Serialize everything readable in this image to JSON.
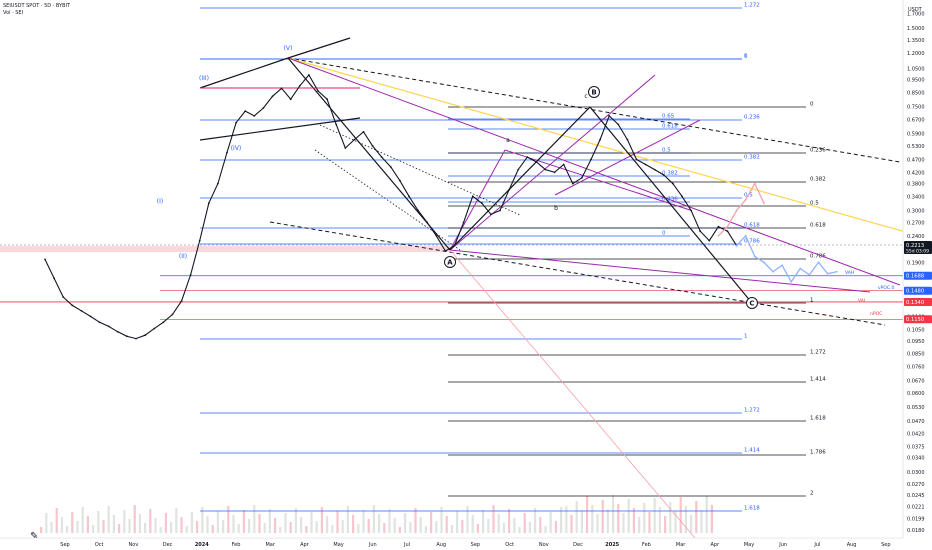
{
  "header": {
    "symbol_line": "SEIUSDT SPOT · 5D · BYBIT",
    "sub_line": "Vol · SEI"
  },
  "chart_data": {
    "type": "line",
    "title": "",
    "price_axis": {
      "unit_label": "USDT",
      "scale": "log",
      "ticks": [
        "1.7000",
        "1.5000",
        "1.3500",
        "1.2000",
        "1.0500",
        "0.9500",
        "0.8500",
        "0.7500",
        "0.6700",
        "0.5900",
        "0.5300",
        "0.4700",
        "0.4200",
        "0.3800",
        "0.3400",
        "0.3000",
        "0.2700",
        "0.2400",
        "0.2150",
        "0.1900",
        "0.1680",
        "0.1490",
        "0.1330",
        "0.1180",
        "0.1050",
        "0.0950",
        "0.0850",
        "0.0760",
        "0.0670",
        "0.0600",
        "0.0530",
        "0.0470",
        "0.0420",
        "0.0375",
        "0.0340",
        "0.0300",
        "0.0270",
        "0.0245",
        "0.0221",
        "0.0199",
        "0.0180"
      ],
      "ylim": [
        0.0175,
        1.85
      ]
    },
    "time_axis": {
      "ticks": [
        "Sep",
        "Oct",
        "Nov",
        "Dec",
        "2024",
        "Feb",
        "Mar",
        "Apr",
        "May",
        "Jun",
        "Jul",
        "Aug",
        "Sep",
        "Oct",
        "Nov",
        "Dec",
        "2025",
        "Feb",
        "Mar",
        "Apr",
        "May",
        "Jun",
        "Jul",
        "Aug",
        "Sep"
      ]
    },
    "price_labels": [
      {
        "value": 0.2213,
        "text": "0.2213",
        "sub": "55d 03:09",
        "color": "#131722"
      },
      {
        "value": 0.1688,
        "text": "0.1688",
        "color": "#2962ff"
      },
      {
        "value": 0.148,
        "text": "0.1480",
        "color": "#2962ff"
      },
      {
        "value": 0.134,
        "text": "0.1340",
        "color": "#f23645"
      },
      {
        "value": 0.115,
        "text": "0.1150",
        "color": "#f23645"
      }
    ],
    "series": [
      {
        "name": "price_history",
        "points": [
          [
            0,
            0.195
          ],
          [
            1,
            0.165
          ],
          [
            2,
            0.14
          ],
          [
            3,
            0.13
          ],
          [
            4,
            0.124
          ],
          [
            5,
            0.118
          ],
          [
            6,
            0.112
          ],
          [
            7,
            0.108
          ],
          [
            8,
            0.103
          ],
          [
            9,
            0.099
          ],
          [
            10,
            0.097
          ],
          [
            11,
            0.1
          ],
          [
            12,
            0.106
          ],
          [
            13,
            0.112
          ],
          [
            14,
            0.12
          ],
          [
            15,
            0.135
          ],
          [
            16,
            0.17
          ],
          [
            17,
            0.23
          ],
          [
            18,
            0.32
          ],
          [
            19,
            0.38
          ],
          [
            20,
            0.5
          ],
          [
            21,
            0.65
          ],
          [
            22,
            0.72
          ],
          [
            23,
            0.69
          ],
          [
            24,
            0.74
          ],
          [
            25,
            0.82
          ],
          [
            26,
            0.88
          ],
          [
            27,
            0.8
          ],
          [
            28,
            0.9
          ],
          [
            29,
            0.99
          ],
          [
            30,
            0.86
          ],
          [
            31,
            0.8
          ],
          [
            32,
            0.64
          ],
          [
            33,
            0.52
          ],
          [
            34,
            0.56
          ],
          [
            35,
            0.6
          ],
          [
            36,
            0.53
          ],
          [
            37,
            0.48
          ],
          [
            38,
            0.44
          ],
          [
            39,
            0.39
          ],
          [
            40,
            0.34
          ],
          [
            41,
            0.3
          ],
          [
            42,
            0.27
          ],
          [
            43,
            0.24
          ],
          [
            44,
            0.21
          ],
          [
            45,
            0.22
          ],
          [
            46,
            0.27
          ],
          [
            47,
            0.34
          ],
          [
            48,
            0.32
          ],
          [
            49,
            0.29
          ],
          [
            50,
            0.3
          ],
          [
            51,
            0.36
          ],
          [
            52,
            0.43
          ],
          [
            53,
            0.48
          ],
          [
            54,
            0.46
          ],
          [
            55,
            0.43
          ],
          [
            56,
            0.42
          ],
          [
            57,
            0.45
          ],
          [
            58,
            0.38
          ],
          [
            59,
            0.4
          ],
          [
            60,
            0.47
          ],
          [
            61,
            0.56
          ],
          [
            62,
            0.69
          ],
          [
            63,
            0.64
          ],
          [
            64,
            0.56
          ],
          [
            65,
            0.47
          ],
          [
            66,
            0.45
          ],
          [
            67,
            0.43
          ],
          [
            68,
            0.41
          ],
          [
            69,
            0.38
          ],
          [
            70,
            0.34
          ],
          [
            71,
            0.3
          ],
          [
            72,
            0.25
          ],
          [
            73,
            0.23
          ],
          [
            74,
            0.26
          ],
          [
            75,
            0.25
          ],
          [
            76,
            0.22
          ]
        ]
      },
      {
        "name": "projection_blue",
        "points": [
          [
            76,
            0.22
          ],
          [
            77,
            0.24
          ],
          [
            78,
            0.2
          ],
          [
            79,
            0.19
          ],
          [
            80,
            0.175
          ],
          [
            81,
            0.185
          ],
          [
            82,
            0.16
          ],
          [
            83,
            0.18
          ],
          [
            84,
            0.17
          ],
          [
            85,
            0.19
          ],
          [
            86,
            0.172
          ],
          [
            87,
            0.175
          ]
        ]
      },
      {
        "name": "projection_red",
        "points": [
          [
            74,
            0.24
          ],
          [
            75,
            0.26
          ],
          [
            76,
            0.3
          ],
          [
            77,
            0.33
          ],
          [
            78,
            0.38
          ],
          [
            79,
            0.32
          ]
        ]
      }
    ],
    "wave_labels": [
      "(V)",
      "(III)",
      "(IV)",
      "(I)",
      "(II)",
      "A",
      "B",
      "C",
      "a",
      "b",
      "c"
    ],
    "fib_levels_left": [
      "1.272",
      "1",
      "0",
      "0.236",
      "0.382",
      "0.5",
      "0.618",
      "0.786",
      "1",
      "1.272",
      "1.414",
      "1.618"
    ],
    "fib_levels_middle": [
      "0.65",
      "0.618",
      "0.5",
      "0.382",
      "0.236",
      "0"
    ],
    "fib_levels_right": [
      "0",
      "0.236",
      "0.382",
      "0.5",
      "0.618",
      "0.786",
      "1",
      "1.272",
      "1.414",
      "1.618",
      "1.786",
      "2"
    ],
    "annotations": [
      "VAH",
      "vPOC.0",
      "VAL",
      "nPOC"
    ],
    "grid": false,
    "legend": "none"
  }
}
